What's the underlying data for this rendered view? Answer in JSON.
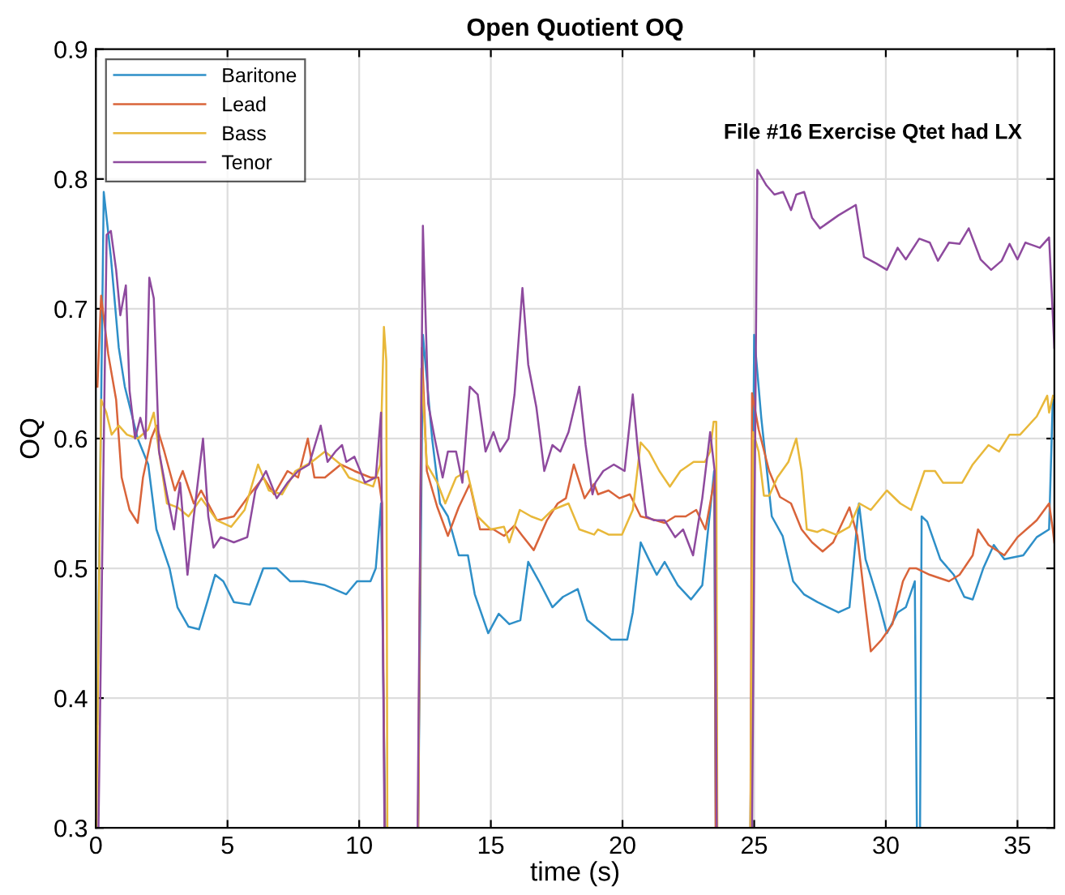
{
  "chart_data": {
    "type": "line",
    "title": "Open Quotient OQ",
    "xlabel": "time (s)",
    "ylabel": "OQ",
    "annotations": [
      "File #16 Exercise Qtet had LX"
    ],
    "xlim": [
      0,
      36.4
    ],
    "ylim": [
      0.3,
      0.9
    ],
    "xticks": [
      0,
      5,
      10,
      15,
      20,
      25,
      30,
      35
    ],
    "yticks": [
      0.3,
      0.4,
      0.5,
      0.6,
      0.7,
      0.8,
      0.9
    ],
    "grid": true,
    "legend": "top left",
    "marker": "none",
    "line_style": "solid",
    "series": [
      {
        "name": "Baritone",
        "color": "#2e8fc8",
        "x": [
          0.05,
          0.3,
          0.57,
          0.87,
          1.1,
          1.59,
          1.99,
          2.3,
          2.8,
          3.1,
          3.52,
          3.92,
          4.23,
          4.53,
          4.84,
          5.24,
          5.85,
          6.36,
          6.87,
          7.38,
          7.89,
          8.7,
          9.51,
          9.92,
          10.43,
          10.63,
          10.83,
          10.99,
          12.24,
          12.42,
          12.77,
          13.07,
          13.37,
          13.78,
          14.13,
          14.39,
          14.9,
          15.3,
          15.7,
          16.12,
          16.42,
          16.83,
          17.34,
          17.74,
          18.3,
          18.66,
          18.96,
          19.57,
          20.18,
          20.39,
          20.69,
          21.0,
          21.3,
          21.6,
          22.1,
          22.6,
          23.03,
          23.33,
          23.48,
          23.54,
          24.86,
          25.0,
          25.27,
          25.67,
          26.08,
          26.48,
          26.89,
          27.4,
          27.8,
          28.2,
          28.62,
          28.98,
          29.23,
          29.73,
          30.04,
          30.45,
          30.76,
          31.1,
          31.18,
          31.3,
          31.36,
          31.57,
          32.07,
          32.58,
          32.98,
          33.3,
          33.7,
          34.1,
          34.5,
          35.22,
          35.73,
          36.2,
          36.34
        ],
        "values": [
          0.38,
          0.79,
          0.74,
          0.67,
          0.64,
          0.6,
          0.58,
          0.53,
          0.5,
          0.47,
          0.455,
          0.453,
          0.474,
          0.495,
          0.49,
          0.474,
          0.472,
          0.5,
          0.5,
          0.49,
          0.49,
          0.487,
          0.48,
          0.49,
          0.49,
          0.5,
          0.55,
          0.3,
          0.3,
          0.68,
          0.6,
          0.55,
          0.54,
          0.51,
          0.51,
          0.48,
          0.45,
          0.465,
          0.457,
          0.46,
          0.505,
          0.49,
          0.47,
          0.478,
          0.484,
          0.46,
          0.455,
          0.445,
          0.445,
          0.466,
          0.52,
          0.507,
          0.495,
          0.505,
          0.487,
          0.476,
          0.487,
          0.545,
          0.575,
          0.3,
          0.3,
          0.68,
          0.616,
          0.54,
          0.525,
          0.49,
          0.48,
          0.474,
          0.47,
          0.466,
          0.47,
          0.55,
          0.507,
          0.474,
          0.45,
          0.466,
          0.47,
          0.49,
          0.3,
          0.3,
          0.54,
          0.536,
          0.507,
          0.495,
          0.478,
          0.476,
          0.5,
          0.518,
          0.507,
          0.51,
          0.524,
          0.53,
          0.63
        ]
      },
      {
        "name": "Lead",
        "color": "#d9643a",
        "x": [
          0.06,
          0.2,
          0.47,
          0.77,
          0.98,
          1.28,
          1.59,
          1.79,
          2.1,
          2.3,
          2.6,
          3.0,
          3.3,
          3.72,
          4.0,
          4.6,
          5.24,
          5.85,
          6.36,
          6.77,
          7.28,
          7.68,
          8.05,
          8.3,
          8.7,
          9.3,
          9.82,
          10.43,
          10.73,
          10.87,
          10.97,
          12.24,
          12.38,
          12.57,
          12.97,
          13.37,
          13.78,
          14.2,
          14.59,
          15.1,
          15.5,
          15.9,
          16.2,
          16.63,
          17.13,
          17.54,
          17.85,
          18.15,
          18.56,
          18.92,
          19.07,
          19.47,
          19.88,
          20.28,
          20.69,
          21.1,
          21.6,
          22.0,
          22.4,
          22.8,
          23.15,
          23.33,
          23.5,
          23.54,
          24.86,
          24.92,
          25.17,
          25.57,
          25.98,
          26.4,
          26.8,
          27.2,
          27.6,
          28.0,
          28.62,
          28.92,
          29.23,
          29.43,
          29.84,
          30.25,
          30.65,
          30.9,
          31.16,
          31.67,
          32.4,
          32.8,
          33.3,
          33.5,
          33.9,
          34.5,
          35.0,
          35.73,
          36.2,
          36.34,
          36.4
        ],
        "values": [
          0.64,
          0.71,
          0.665,
          0.63,
          0.57,
          0.545,
          0.535,
          0.57,
          0.6,
          0.61,
          0.59,
          0.56,
          0.575,
          0.55,
          0.56,
          0.537,
          0.54,
          0.557,
          0.57,
          0.557,
          0.575,
          0.57,
          0.6,
          0.57,
          0.57,
          0.58,
          0.575,
          0.57,
          0.57,
          0.55,
          0.3,
          0.3,
          0.67,
          0.575,
          0.547,
          0.525,
          0.547,
          0.565,
          0.53,
          0.53,
          0.525,
          0.533,
          0.525,
          0.514,
          0.537,
          0.55,
          0.554,
          0.58,
          0.554,
          0.565,
          0.557,
          0.56,
          0.554,
          0.557,
          0.54,
          0.538,
          0.535,
          0.54,
          0.54,
          0.545,
          0.53,
          0.55,
          0.57,
          0.3,
          0.3,
          0.635,
          0.607,
          0.575,
          0.555,
          0.55,
          0.53,
          0.52,
          0.513,
          0.52,
          0.547,
          0.525,
          0.47,
          0.436,
          0.445,
          0.457,
          0.49,
          0.5,
          0.5,
          0.495,
          0.49,
          0.495,
          0.51,
          0.53,
          0.518,
          0.51,
          0.524,
          0.537,
          0.55,
          0.53,
          0.52
        ]
      },
      {
        "name": "Bass",
        "color": "#e8b83a",
        "x": [
          0.02,
          0.2,
          0.4,
          0.6,
          0.87,
          1.18,
          1.59,
          1.99,
          2.2,
          2.4,
          2.7,
          3.1,
          3.52,
          4.0,
          4.6,
          5.14,
          5.65,
          6.16,
          6.57,
          7.07,
          7.58,
          8.2,
          8.7,
          9.3,
          9.61,
          10.12,
          10.53,
          10.8,
          10.94,
          11.03,
          11.07,
          12.24,
          12.36,
          12.57,
          12.97,
          13.27,
          13.68,
          14.1,
          14.5,
          15.0,
          15.5,
          15.7,
          16.1,
          16.53,
          16.93,
          17.34,
          17.95,
          18.36,
          18.92,
          19.07,
          19.47,
          19.98,
          20.39,
          20.69,
          21.0,
          21.4,
          21.8,
          22.2,
          22.7,
          23.13,
          23.33,
          23.46,
          23.56,
          23.6,
          24.86,
          24.96,
          25.17,
          25.37,
          25.57,
          25.88,
          26.3,
          26.6,
          26.8,
          27.0,
          27.4,
          27.6,
          28.1,
          28.62,
          29.0,
          29.43,
          30.04,
          30.55,
          30.96,
          31.47,
          31.87,
          32.17,
          32.9,
          33.3,
          33.9,
          34.3,
          34.7,
          35.1,
          35.73,
          36.13,
          36.2,
          36.35
        ],
        "values": [
          0.3,
          0.63,
          0.62,
          0.603,
          0.61,
          0.603,
          0.6,
          0.607,
          0.62,
          0.59,
          0.55,
          0.547,
          0.54,
          0.554,
          0.537,
          0.532,
          0.545,
          0.58,
          0.56,
          0.557,
          0.575,
          0.582,
          0.59,
          0.58,
          0.57,
          0.566,
          0.563,
          0.58,
          0.686,
          0.66,
          0.3,
          0.3,
          0.654,
          0.58,
          0.566,
          0.55,
          0.57,
          0.575,
          0.54,
          0.53,
          0.532,
          0.52,
          0.545,
          0.54,
          0.537,
          0.545,
          0.55,
          0.53,
          0.526,
          0.53,
          0.526,
          0.526,
          0.545,
          0.597,
          0.59,
          0.575,
          0.563,
          0.575,
          0.582,
          0.582,
          0.59,
          0.613,
          0.613,
          0.3,
          0.3,
          0.605,
          0.59,
          0.556,
          0.556,
          0.57,
          0.582,
          0.6,
          0.575,
          0.53,
          0.528,
          0.53,
          0.526,
          0.532,
          0.55,
          0.545,
          0.56,
          0.55,
          0.545,
          0.575,
          0.575,
          0.566,
          0.566,
          0.58,
          0.595,
          0.59,
          0.603,
          0.603,
          0.617,
          0.633,
          0.62,
          0.633
        ]
      },
      {
        "name": "Tenor",
        "color": "#8e4a9e",
        "x": [
          0.1,
          0.41,
          0.57,
          0.77,
          0.93,
          1.14,
          1.28,
          1.49,
          1.69,
          1.89,
          2.03,
          2.2,
          2.4,
          2.7,
          2.97,
          3.2,
          3.48,
          3.72,
          4.07,
          4.27,
          4.47,
          4.74,
          5.24,
          5.75,
          6.06,
          6.46,
          6.87,
          7.28,
          7.68,
          8.1,
          8.54,
          8.8,
          9.1,
          9.35,
          9.51,
          9.82,
          10.22,
          10.63,
          10.83,
          10.96,
          12.22,
          12.42,
          12.62,
          12.87,
          13.17,
          13.37,
          13.68,
          13.92,
          14.2,
          14.5,
          14.8,
          15.1,
          15.35,
          15.67,
          15.9,
          16.2,
          16.42,
          16.73,
          17.03,
          17.34,
          17.64,
          17.95,
          18.36,
          18.6,
          18.86,
          18.97,
          19.27,
          19.67,
          20.08,
          20.39,
          20.59,
          20.9,
          21.2,
          21.6,
          22.0,
          22.3,
          22.68,
          23.03,
          23.33,
          23.5,
          23.58,
          24.92,
          25.12,
          25.47,
          25.77,
          26.1,
          26.4,
          26.6,
          26.9,
          27.2,
          27.5,
          28.2,
          28.86,
          29.17,
          29.63,
          30.04,
          30.45,
          30.76,
          31.27,
          31.67,
          31.98,
          32.4,
          32.8,
          33.15,
          33.6,
          34.0,
          34.4,
          34.7,
          35.0,
          35.3,
          35.85,
          36.2,
          36.4
        ],
        "values": [
          0.3,
          0.757,
          0.76,
          0.73,
          0.695,
          0.718,
          0.637,
          0.6,
          0.616,
          0.6,
          0.724,
          0.708,
          0.59,
          0.557,
          0.53,
          0.566,
          0.495,
          0.54,
          0.6,
          0.54,
          0.516,
          0.524,
          0.52,
          0.524,
          0.56,
          0.575,
          0.554,
          0.566,
          0.575,
          0.58,
          0.61,
          0.582,
          0.59,
          0.595,
          0.582,
          0.586,
          0.566,
          0.57,
          0.62,
          0.3,
          0.3,
          0.764,
          0.627,
          0.6,
          0.57,
          0.59,
          0.59,
          0.566,
          0.64,
          0.634,
          0.59,
          0.605,
          0.59,
          0.6,
          0.634,
          0.716,
          0.657,
          0.624,
          0.575,
          0.595,
          0.59,
          0.605,
          0.64,
          0.595,
          0.557,
          0.566,
          0.575,
          0.58,
          0.575,
          0.634,
          0.59,
          0.54,
          0.537,
          0.537,
          0.524,
          0.53,
          0.51,
          0.554,
          0.605,
          0.575,
          0.3,
          0.3,
          0.807,
          0.795,
          0.788,
          0.79,
          0.776,
          0.788,
          0.79,
          0.77,
          0.762,
          0.772,
          0.78,
          0.74,
          0.735,
          0.73,
          0.747,
          0.738,
          0.754,
          0.751,
          0.737,
          0.751,
          0.75,
          0.762,
          0.738,
          0.73,
          0.737,
          0.75,
          0.738,
          0.751,
          0.747,
          0.755,
          0.67
        ]
      }
    ]
  }
}
